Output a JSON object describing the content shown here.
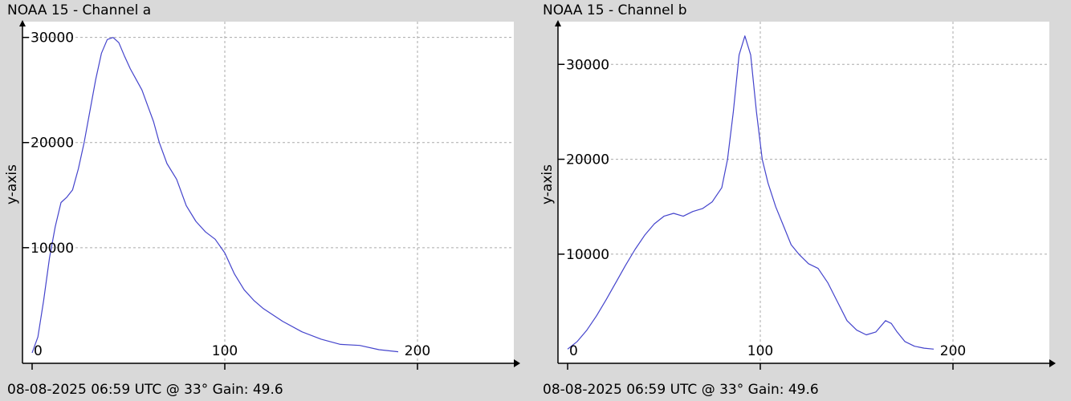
{
  "chart_data": [
    {
      "type": "line",
      "title": "NOAA 15 - Channel a",
      "footer": "08-08-2025 06:59 UTC @ 33° Gain: 49.6",
      "xlabel": "",
      "ylabel": "y-axis",
      "xlim": [
        -5,
        250
      ],
      "ylim": [
        -1000,
        31500
      ],
      "x_ticks": [
        0,
        100,
        200
      ],
      "y_ticks": [
        10000,
        20000,
        30000
      ],
      "grid": true,
      "series": [
        {
          "color": "#4444cc",
          "x": [
            0,
            3,
            6,
            9,
            12,
            15,
            18,
            21,
            24,
            27,
            30,
            33,
            36,
            39,
            42,
            45,
            48,
            51,
            54,
            57,
            60,
            63,
            66,
            70,
            75,
            80,
            85,
            90,
            95,
            100,
            105,
            110,
            115,
            120,
            130,
            140,
            150,
            160,
            170,
            180,
            190
          ],
          "y": [
            0,
            1500,
            5000,
            9000,
            12000,
            14300,
            14800,
            15500,
            17500,
            20000,
            23000,
            26000,
            28500,
            29800,
            30000,
            29500,
            28200,
            27000,
            26000,
            25000,
            23500,
            22000,
            20000,
            18000,
            16500,
            14000,
            12500,
            11500,
            10800,
            9500,
            7500,
            6000,
            5000,
            4200,
            3000,
            2000,
            1300,
            800,
            700,
            300,
            100
          ]
        }
      ]
    },
    {
      "type": "line",
      "title": "NOAA 15 - Channel b",
      "footer": "08-08-2025 06:59 UTC @ 33° Gain: 49.6",
      "xlabel": "",
      "ylabel": "y-axis",
      "xlim": [
        -5,
        250
      ],
      "ylim": [
        -1500,
        34500
      ],
      "x_ticks": [
        0,
        100,
        200
      ],
      "y_ticks": [
        10000,
        20000,
        30000
      ],
      "grid": true,
      "series": [
        {
          "color": "#4444cc",
          "x": [
            0,
            5,
            10,
            15,
            20,
            25,
            30,
            35,
            40,
            45,
            50,
            55,
            60,
            65,
            70,
            75,
            80,
            83,
            86,
            89,
            92,
            95,
            98,
            101,
            104,
            108,
            112,
            116,
            120,
            125,
            130,
            135,
            140,
            145,
            150,
            155,
            160,
            165,
            168,
            171,
            175,
            180,
            185,
            190
          ],
          "y": [
            0,
            800,
            2000,
            3500,
            5200,
            7000,
            8800,
            10500,
            12000,
            13200,
            14000,
            14300,
            14000,
            14500,
            14800,
            15500,
            17000,
            20000,
            25000,
            31000,
            33000,
            31000,
            25000,
            20000,
            17500,
            15000,
            13000,
            11000,
            10000,
            9000,
            8500,
            7000,
            5000,
            3000,
            2000,
            1500,
            1800,
            3000,
            2700,
            1800,
            800,
            300,
            100,
            0
          ]
        }
      ]
    }
  ]
}
